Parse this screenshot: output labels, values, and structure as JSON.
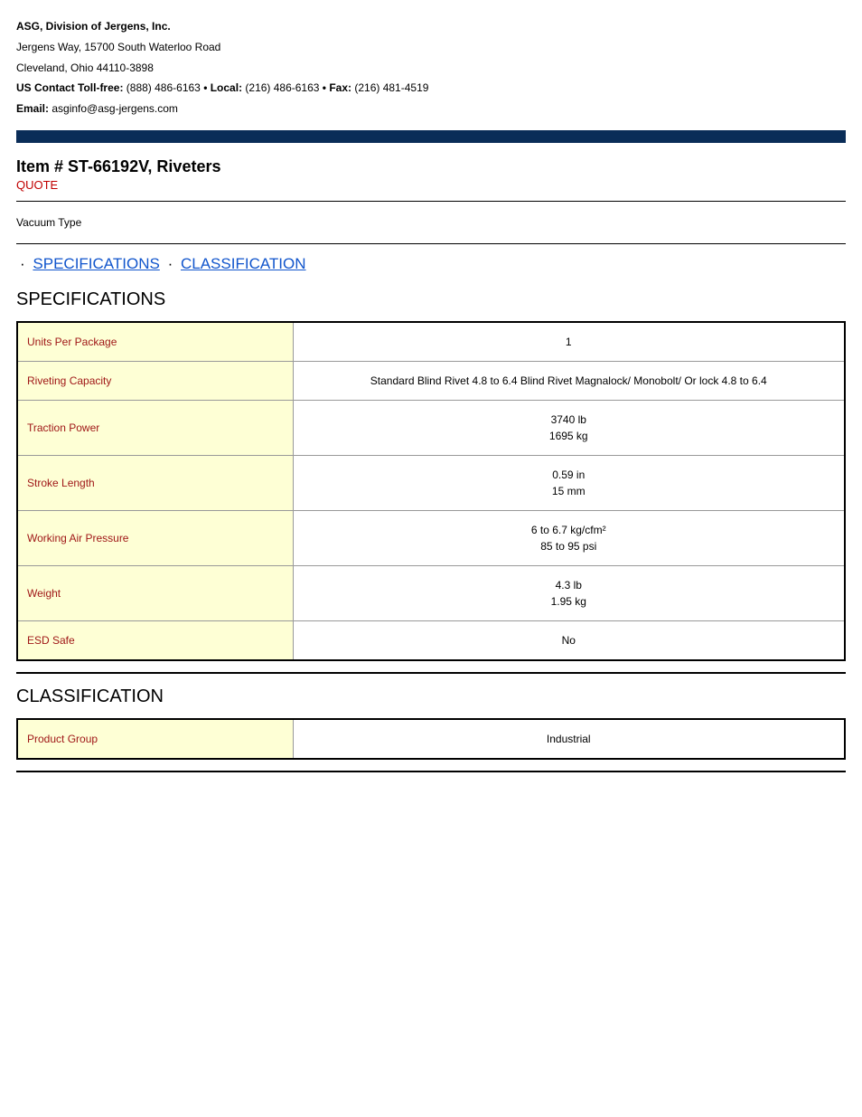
{
  "header": {
    "company_name": "ASG, Division of Jergens, Inc.",
    "address_line1": "Jergens Way, 15700 South Waterloo Road",
    "address_line2": "Cleveland, Ohio 44110-3898",
    "tollfree_label": "US Contact Toll-free:",
    "tollfree_value": " (888) 486-6163 ",
    "local_label": "• Local:",
    "local_value": " (216) 486-6163 ",
    "fax_label": "• Fax:",
    "fax_value": " (216) 481-4519",
    "email_label": "Email:",
    "email_value": " asginfo@asg-jergens.com"
  },
  "item": {
    "title": "Item # ST-66192V, Riveters",
    "quote_label": "QUOTE",
    "description": "Vacuum Type"
  },
  "nav": {
    "specifications": "SPECIFICATIONS",
    "classification": "CLASSIFICATION"
  },
  "specifications": {
    "heading": "SPECIFICATIONS",
    "rows": [
      {
        "label": "Units Per Package",
        "value": "1"
      },
      {
        "label": "Riveting Capacity",
        "value": "Standard Blind Rivet 4.8 to 6.4 Blind Rivet Magnalock/ Monobolt/ Or lock 4.8 to 6.4"
      },
      {
        "label": "Traction Power",
        "value": "3740 lb\n1695 kg"
      },
      {
        "label": "Stroke Length",
        "value": "0.59 in\n15 mm"
      },
      {
        "label": "Working Air Pressure",
        "value": "6 to 6.7 kg/cfm²\n85 to 95 psi"
      },
      {
        "label": "Weight",
        "value": "4.3 lb\n1.95 kg"
      },
      {
        "label": "ESD Safe",
        "value": "No"
      }
    ]
  },
  "classification": {
    "heading": "CLASSIFICATION",
    "rows": [
      {
        "label": "Product Group",
        "value": "Industrial"
      }
    ]
  },
  "colors": {
    "navy_bar": "#0a2d58",
    "label_bg": "#feffd5",
    "label_text": "#a01818",
    "quote_red": "#c00000",
    "link_blue": "#1155cc"
  }
}
